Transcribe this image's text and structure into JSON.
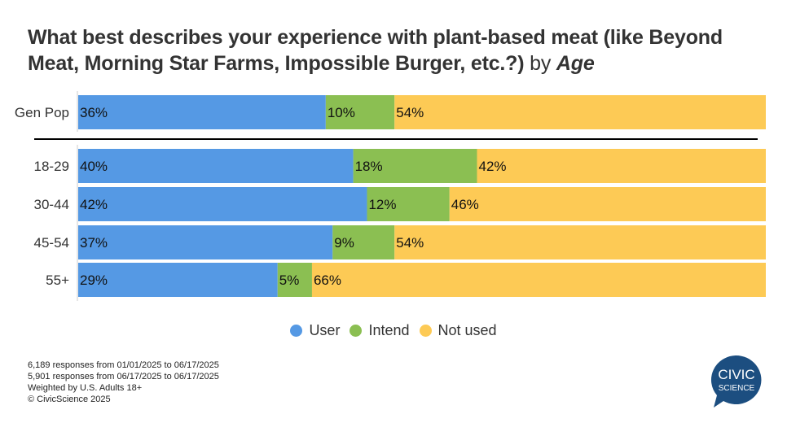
{
  "title": {
    "main": "What best describes your experience with plant-based meat (like Beyond Meat, Morning Star Farms, Impossible Burger, etc.?)",
    "by": "by",
    "segment": "Age"
  },
  "chart_data": {
    "type": "bar",
    "orientation": "horizontal",
    "stacked": true,
    "percent": true,
    "categories": [
      "Gen Pop",
      "18-29",
      "30-44",
      "45-54",
      "55+"
    ],
    "series": [
      {
        "name": "User",
        "color": "#5599e4",
        "values": [
          36,
          40,
          42,
          37,
          29
        ]
      },
      {
        "name": "Intend",
        "color": "#8bbf52",
        "values": [
          10,
          18,
          12,
          9,
          5
        ]
      },
      {
        "name": "Not used",
        "color": "#fdca55",
        "values": [
          54,
          42,
          46,
          54,
          66
        ]
      }
    ],
    "xlim": [
      0,
      100
    ],
    "legend": "bottom",
    "grid": false
  },
  "notes": [
    "6,189 responses from 01/01/2025 to 06/17/2025",
    "5,901 responses from  06/17/2025 to 06/17/2025",
    "Weighted by U.S. Adults 18+",
    "© CivicScience 2025"
  ],
  "logo": {
    "line1": "CIVIC",
    "line2": "SCIENCE",
    "color": "#1c4e80"
  }
}
